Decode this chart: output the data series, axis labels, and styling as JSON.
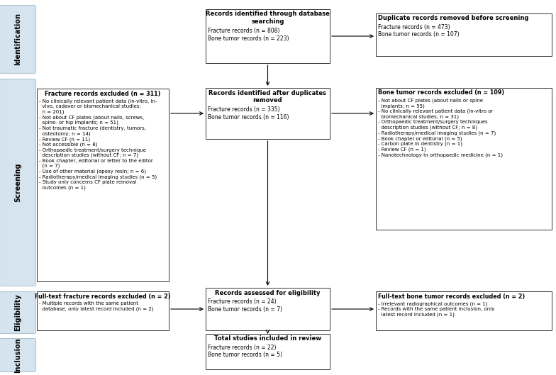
{
  "sidebar_labels": [
    "Identification",
    "Screening",
    "Eligibility",
    "Inclusion"
  ],
  "sidebar_color": "#d6e4f0",
  "sidebar_border": "#aec6cf",
  "box_top_center": {
    "title": "Records identified through database\nsearching",
    "body": "Fracture records (n = 808)\nBone tumor records (n = 223)"
  },
  "box_top_right": {
    "title": "Duplicate records removed before screening",
    "body": "Fracture records (n = 473)\nBone tumor records (n = 107)"
  },
  "box_screen_center": {
    "title": "Records identified after duplicates\nremoved",
    "body": "Fracture records (n = 335)\nBone tumor records (n = 116)"
  },
  "box_screen_left": {
    "title": "Fracture records excluded (n = 311)",
    "body": "- No clinically relevant patient data (in-vitro, in-\n  vivo, cadaver or biomechanical studies;\n  n = 201)\n- Not about CF plates (about nails, screws,\n  spine- or hip implants; n = 51)\n- Not traumatic fracture (dentistry, tumors,\n  osteotomy; n = 14)\n- Review CF (n = 11)\n- Not accessible (n = 8)\n- Orthopaedic treatment/surgery technique\n  description studies (without CF; n = 7)\n- Book chapter, editorial or letter to the editor\n  (n = 7)\n- Use of other material (epoxy resin; n = 6)\n- Radiotherapy/medical imaging studies (n = 5)\n- Study only concerns CF plate removal\n  outcomes (n = 1)"
  },
  "box_screen_right": {
    "title": "Bone tumor records excluded (n = 109)",
    "body": "- Not about CF plates (about nails or spine\n  implants; n = 55)\n- No clinically relevant patient data (in-vitro or\n  biomechanical studies; n = 31)\n- Orthopaedic treatment/surgery techniques\n  description studies (without CF; n = 8)\n- Radiotherapy/medical imaging studies (n = 7)\n- Book chapter or editorial (n = 5)\n- Carbon plate in dentistry (n = 1)\n- Review CF (n = 1)\n- Nanotechnology in orthopaedic medicine (n = 1)"
  },
  "box_elig_center": {
    "title": "Records assessed for eligibility",
    "body": "Fracture records (n = 24)\nBone tumor records (n = 7)"
  },
  "box_elig_left": {
    "title": "Full-text fracture records excluded (n = 2)",
    "body": "- Multiple records with the same patient\n  database, only latest record included (n = 2)"
  },
  "box_elig_right": {
    "title": "Full-text bone tumor records excluded (n = 2)",
    "body": "- Irrelevant radiographical outcomes (n = 1)\n- Records with the same patient inclusion, only\n  latest record included (n = 1)"
  },
  "box_inclusion_center": {
    "title": "Total studies included in review",
    "body": "Fracture records (n = 22)\nBone tumor records (n = 5)"
  }
}
